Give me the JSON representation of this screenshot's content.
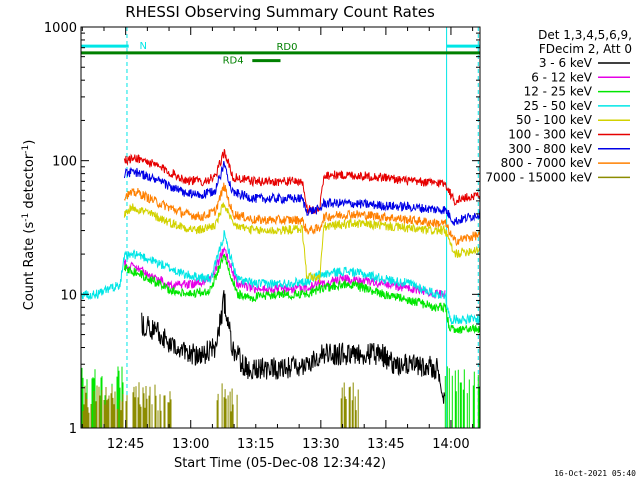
{
  "chart_data": {
    "type": "line",
    "title": "RHESSI Observing Summary Count Rates",
    "xlabel": "Start Time (05-Dec-08 12:34:42)",
    "ylabel_main": "Count Rate (s",
    "ylabel_sup1": "-1",
    "ylabel_mid": " detector",
    "ylabel_sup2": "-1",
    "ylabel_end": ")",
    "y_scale": "log",
    "ylim": [
      1,
      1000
    ],
    "xlim_minutes": [
      0,
      92
    ],
    "y_ticks": [
      {
        "value": 1,
        "label": "1"
      },
      {
        "value": 10,
        "label": "10"
      },
      {
        "value": 100,
        "label": "100"
      },
      {
        "value": 1000,
        "label": "1000"
      }
    ],
    "x_ticks": [
      {
        "minute": 10.3,
        "label": "12:45"
      },
      {
        "minute": 25.3,
        "label": "13:00"
      },
      {
        "minute": 40.3,
        "label": "13:15"
      },
      {
        "minute": 55.3,
        "label": "13:30"
      },
      {
        "minute": 70.3,
        "label": "13:45"
      },
      {
        "minute": 85.3,
        "label": "14:00"
      }
    ],
    "legend_header": [
      "Det 1,3,4,5,6,9,",
      "FDecim 2, Att 0"
    ],
    "series": [
      {
        "name": "3 - 6 keV",
        "color": "#000000"
      },
      {
        "name": "6 - 12 keV",
        "color": "#e600e6"
      },
      {
        "name": "12 - 25 keV",
        "color": "#00e600"
      },
      {
        "name": "25 - 50 keV",
        "color": "#00e6e6"
      },
      {
        "name": "50 - 100 keV",
        "color": "#d2d200"
      },
      {
        "name": "100 - 300 keV",
        "color": "#e60000"
      },
      {
        "name": "300 - 800 keV",
        "color": "#0000e6"
      },
      {
        "name": "800 - 7000 keV",
        "color": "#ff8000"
      },
      {
        "name": "7000 - 15000 keV",
        "color": "#8c8c00"
      }
    ],
    "series_points": [
      [
        [
          14,
          6
        ],
        [
          17,
          5.5
        ],
        [
          21,
          4
        ],
        [
          27,
          3.5
        ],
        [
          31,
          4
        ],
        [
          33,
          9
        ],
        [
          35,
          4
        ],
        [
          38,
          2.8
        ],
        [
          46,
          2.8
        ],
        [
          52,
          2.8
        ],
        [
          55,
          3.6
        ],
        [
          62,
          3.6
        ],
        [
          69,
          3.6
        ],
        [
          72,
          3
        ],
        [
          82,
          2.8
        ],
        [
          84,
          1.5
        ]
      ],
      [
        [
          10,
          17
        ],
        [
          14,
          15
        ],
        [
          20,
          12
        ],
        [
          26,
          12
        ],
        [
          30,
          13
        ],
        [
          33,
          22
        ],
        [
          36,
          12
        ],
        [
          40,
          11
        ],
        [
          46,
          11
        ],
        [
          52,
          11
        ],
        [
          55,
          12
        ],
        [
          61,
          13
        ],
        [
          66,
          12.5
        ],
        [
          70,
          12
        ],
        [
          76,
          11
        ],
        [
          82,
          10
        ],
        [
          84,
          10
        ]
      ],
      [
        [
          10,
          16
        ],
        [
          14,
          14
        ],
        [
          20,
          11
        ],
        [
          26,
          10
        ],
        [
          30,
          11
        ],
        [
          33,
          20
        ],
        [
          36,
          10
        ],
        [
          40,
          9.5
        ],
        [
          46,
          10
        ],
        [
          52,
          10
        ],
        [
          55,
          11
        ],
        [
          61,
          12
        ],
        [
          66,
          11
        ],
        [
          70,
          10
        ],
        [
          76,
          9
        ],
        [
          82,
          8
        ],
        [
          84,
          8
        ],
        [
          85,
          5.5
        ],
        [
          92,
          5.5
        ]
      ],
      [
        [
          0,
          10
        ],
        [
          4,
          10
        ],
        [
          9,
          12
        ],
        [
          10,
          19
        ],
        [
          13,
          20
        ],
        [
          18,
          17
        ],
        [
          24,
          14
        ],
        [
          30,
          13
        ],
        [
          33,
          28
        ],
        [
          36,
          13
        ],
        [
          40,
          12
        ],
        [
          46,
          12
        ],
        [
          52,
          12.5
        ],
        [
          55,
          14
        ],
        [
          61,
          15
        ],
        [
          66,
          14
        ],
        [
          70,
          13
        ],
        [
          76,
          12
        ],
        [
          82,
          10
        ],
        [
          84,
          10
        ],
        [
          85,
          6.5
        ],
        [
          92,
          6.5
        ]
      ],
      [
        [
          10,
          40
        ],
        [
          12,
          45
        ],
        [
          16,
          40
        ],
        [
          22,
          33
        ],
        [
          27,
          30
        ],
        [
          31,
          33
        ],
        [
          33,
          48
        ],
        [
          35,
          33
        ],
        [
          40,
          30
        ],
        [
          46,
          30
        ],
        [
          51,
          31
        ],
        [
          52,
          14
        ],
        [
          55,
          13
        ],
        [
          56,
          32
        ],
        [
          62,
          34
        ],
        [
          68,
          33
        ],
        [
          72,
          32
        ],
        [
          80,
          30
        ],
        [
          84,
          30
        ],
        [
          86,
          20
        ],
        [
          92,
          22
        ]
      ],
      [
        [
          10,
          100
        ],
        [
          13,
          105
        ],
        [
          18,
          90
        ],
        [
          24,
          72
        ],
        [
          28,
          70
        ],
        [
          31,
          75
        ],
        [
          33,
          118
        ],
        [
          35,
          75
        ],
        [
          40,
          70
        ],
        [
          46,
          70
        ],
        [
          51,
          70
        ],
        [
          52,
          43
        ],
        [
          55,
          43
        ],
        [
          56,
          78
        ],
        [
          62,
          78
        ],
        [
          70,
          75
        ],
        [
          76,
          70
        ],
        [
          82,
          68
        ],
        [
          84,
          68
        ],
        [
          86,
          50
        ],
        [
          92,
          56
        ]
      ],
      [
        [
          10,
          80
        ],
        [
          13,
          82
        ],
        [
          18,
          70
        ],
        [
          24,
          57
        ],
        [
          28,
          55
        ],
        [
          31,
          60
        ],
        [
          33,
          95
        ],
        [
          35,
          58
        ],
        [
          40,
          52
        ],
        [
          46,
          52
        ],
        [
          51,
          52
        ],
        [
          52,
          42
        ],
        [
          55,
          43
        ],
        [
          56,
          48
        ],
        [
          62,
          48
        ],
        [
          70,
          46
        ],
        [
          76,
          45
        ],
        [
          82,
          43
        ],
        [
          84,
          43
        ],
        [
          86,
          35
        ],
        [
          92,
          40
        ]
      ],
      [
        [
          10,
          55
        ],
        [
          13,
          58
        ],
        [
          18,
          48
        ],
        [
          24,
          40
        ],
        [
          28,
          38
        ],
        [
          31,
          42
        ],
        [
          33,
          65
        ],
        [
          35,
          40
        ],
        [
          40,
          36
        ],
        [
          46,
          36
        ],
        [
          51,
          36
        ],
        [
          52,
          30
        ],
        [
          55,
          31
        ],
        [
          56,
          38
        ],
        [
          62,
          40
        ],
        [
          70,
          38
        ],
        [
          76,
          36
        ],
        [
          82,
          34
        ],
        [
          84,
          34
        ],
        [
          86,
          25
        ],
        [
          92,
          28
        ]
      ]
    ],
    "flags": [
      {
        "name": "N",
        "color": "#00e6e6",
        "value": 720
      },
      {
        "name": "RD0",
        "color": "#008000",
        "value": 640
      },
      {
        "name": "RD4",
        "color": "#008000",
        "value": 560
      }
    ],
    "footer_stamp": "16-Oct-2021 05:40"
  }
}
